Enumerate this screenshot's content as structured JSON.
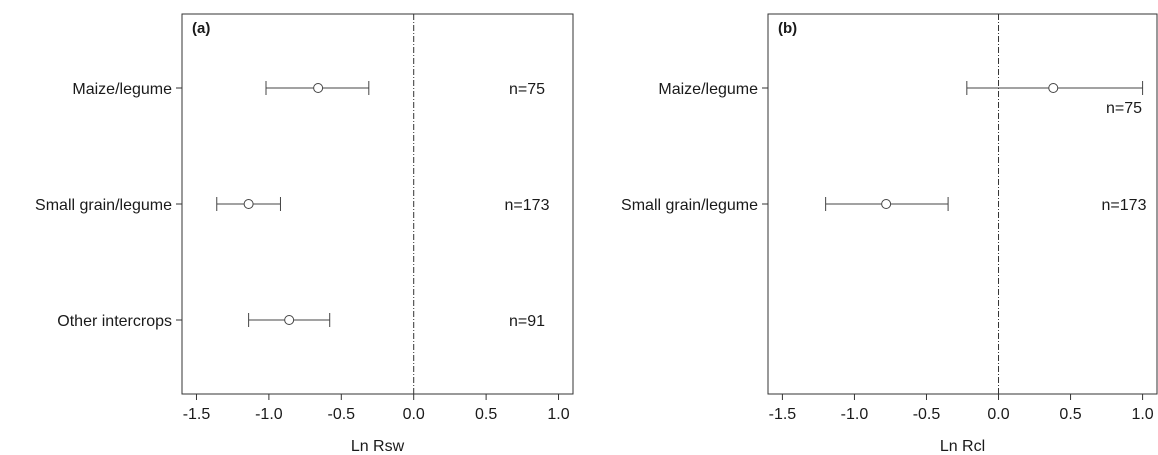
{
  "chart_data": [
    {
      "type": "scatter",
      "panel_label": "(a)",
      "xlabel": "Ln Rsw",
      "xlim": [
        -1.6,
        1.1
      ],
      "xticks": [
        -1.5,
        -1.0,
        -0.5,
        0.0,
        0.5,
        1.0
      ],
      "xtick_labels": [
        "-1.5",
        "-1.0",
        "-0.5",
        "0.0",
        "0.5",
        "1.0"
      ],
      "reference_line": 0.0,
      "grid": false,
      "categories": [
        "Maize/legume",
        "Small grain/legume",
        "Other intercrops"
      ],
      "values": [
        -0.66,
        -1.14,
        -0.86
      ],
      "ci_low": [
        -1.02,
        -1.36,
        -1.14
      ],
      "ci_high": [
        -0.31,
        -0.92,
        -0.58
      ],
      "n_labels": [
        "n=75",
        "n=173",
        "n=91"
      ]
    },
    {
      "type": "scatter",
      "panel_label": "(b)",
      "xlabel": "Ln Rcl",
      "xlim": [
        -1.6,
        1.1
      ],
      "xticks": [
        -1.5,
        -1.0,
        -0.5,
        0.0,
        0.5,
        1.0
      ],
      "xtick_labels": [
        "-1.5",
        "-1.0",
        "-0.5",
        "0.0",
        "0.5",
        "1.0"
      ],
      "reference_line": 0.0,
      "grid": false,
      "categories": [
        "Maize/legume",
        "Small grain/legume"
      ],
      "values": [
        0.38,
        -0.78
      ],
      "ci_low": [
        -0.22,
        -1.2
      ],
      "ci_high": [
        1.0,
        -0.35
      ],
      "n_labels": [
        "n=75",
        "n=173"
      ]
    }
  ]
}
